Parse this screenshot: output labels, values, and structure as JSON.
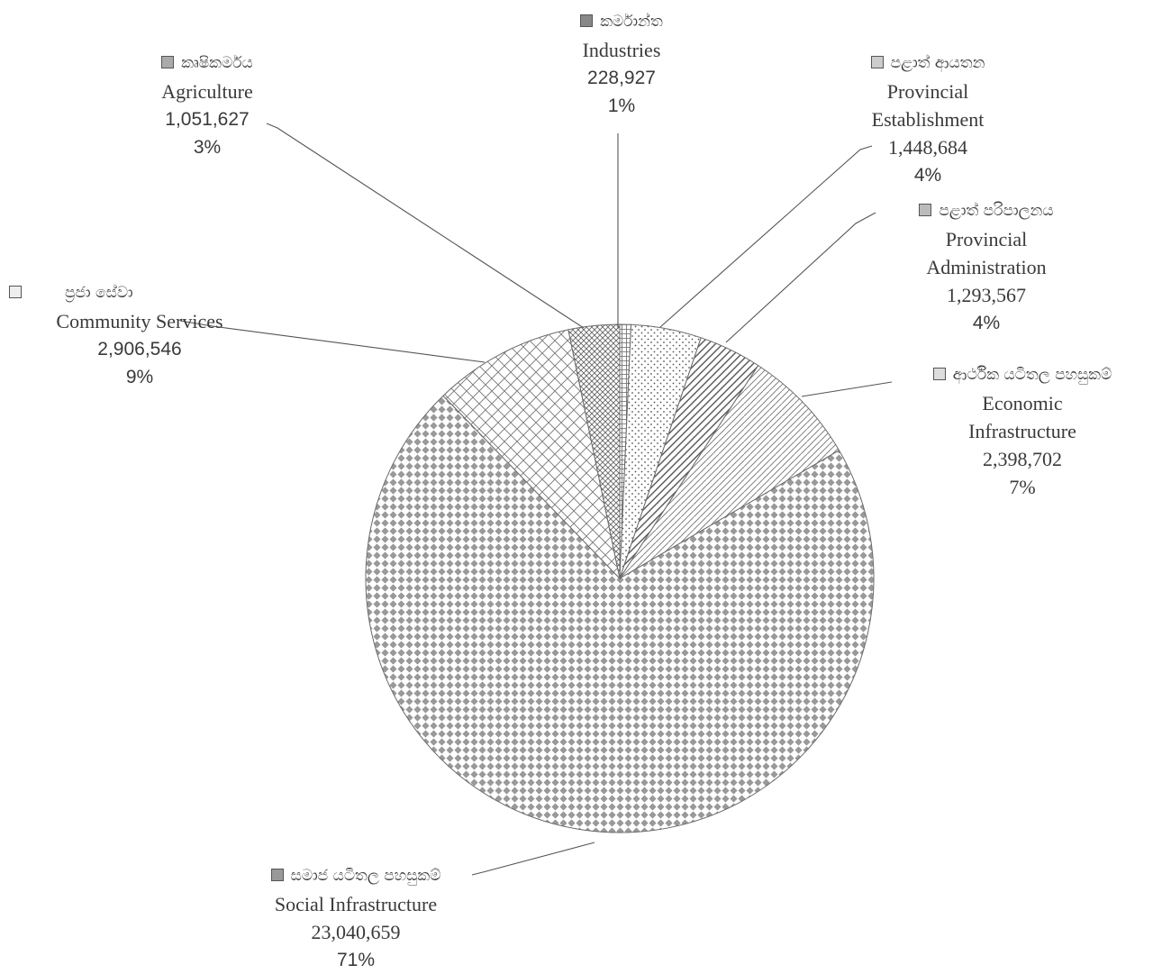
{
  "chart_data": {
    "type": "pie",
    "slices": [
      {
        "si": "කර්මාන්ත",
        "en": "Industries",
        "value": 228927,
        "value_label": "228,927",
        "pct": "1%",
        "pattern": "dense-grid"
      },
      {
        "si": "පළාත් ආයතන",
        "en": [
          "Provincial",
          "Establishment"
        ],
        "value": 1448684,
        "value_label": "1,448,684",
        "pct": "4%",
        "pattern": "dots"
      },
      {
        "si": "පළාත් පරිපාලනය",
        "en": [
          "Provincial",
          "Administration"
        ],
        "value": 1293567,
        "value_label": "1,293,567",
        "pct": "4%",
        "pattern": "diagonal-lines"
      },
      {
        "si": "ආර්ථික යටිතල පහසුකම්",
        "en": [
          "Economic",
          "Infrastructure"
        ],
        "value": 2398702,
        "value_label": "2,398,702",
        "pct": "7%",
        "pattern": "brick"
      },
      {
        "si": "සමාජ යටිතල පහසුකම්",
        "en": "Social Infrastructure",
        "value": 23040659,
        "value_label": "23,040,659",
        "pct": "71%",
        "pattern": "diamond-dots"
      },
      {
        "si": "ප්‍රජා සේවා",
        "en": "Community Services",
        "value": 2906546,
        "value_label": "2,906,546",
        "pct": "9%",
        "pattern": "crosshatch"
      },
      {
        "si": "කෘෂිකර්මය",
        "en": "Agriculture",
        "value": 1051627,
        "value_label": "1,051,627",
        "pct": "3%",
        "pattern": "fine-crosshatch"
      }
    ]
  }
}
